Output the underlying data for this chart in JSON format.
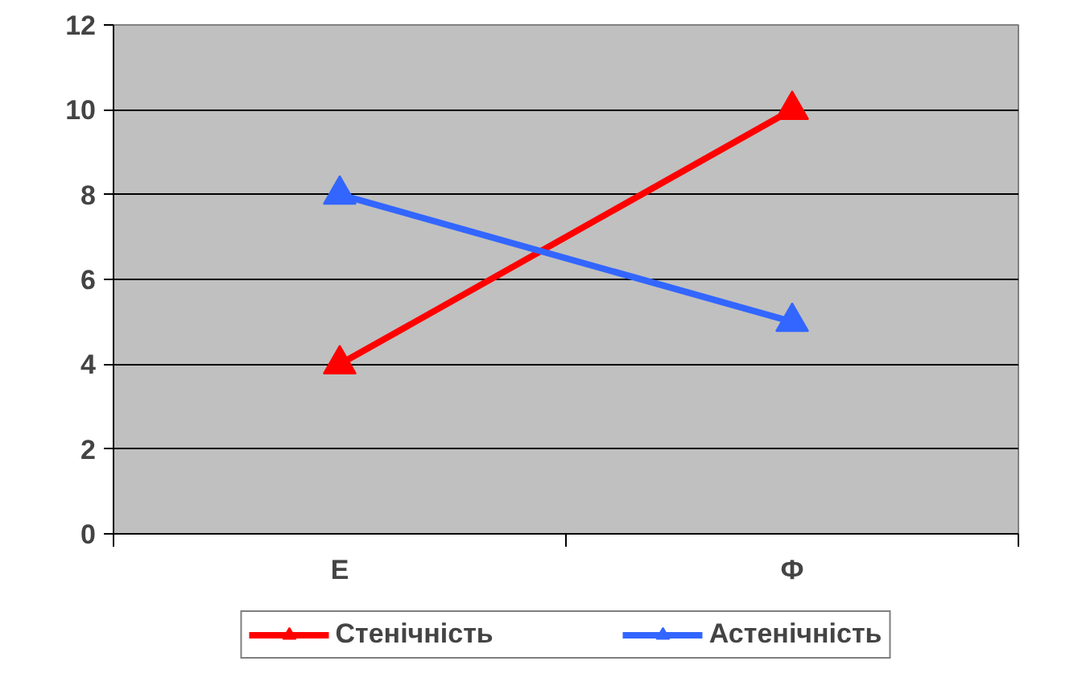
{
  "chart_data": {
    "type": "line",
    "categories": [
      "Е",
      "Ф"
    ],
    "series": [
      {
        "name": "Стенічність",
        "color": "#ff0000",
        "values": [
          4,
          10
        ]
      },
      {
        "name": "Астенічність",
        "color": "#3366ff",
        "values": [
          8,
          5
        ]
      }
    ],
    "ylim": [
      0,
      12
    ],
    "yticks": [
      0,
      2,
      4,
      6,
      8,
      10,
      12
    ],
    "grid": "y",
    "legend": "bottom",
    "marker": "triangle",
    "line_style": "solid"
  }
}
